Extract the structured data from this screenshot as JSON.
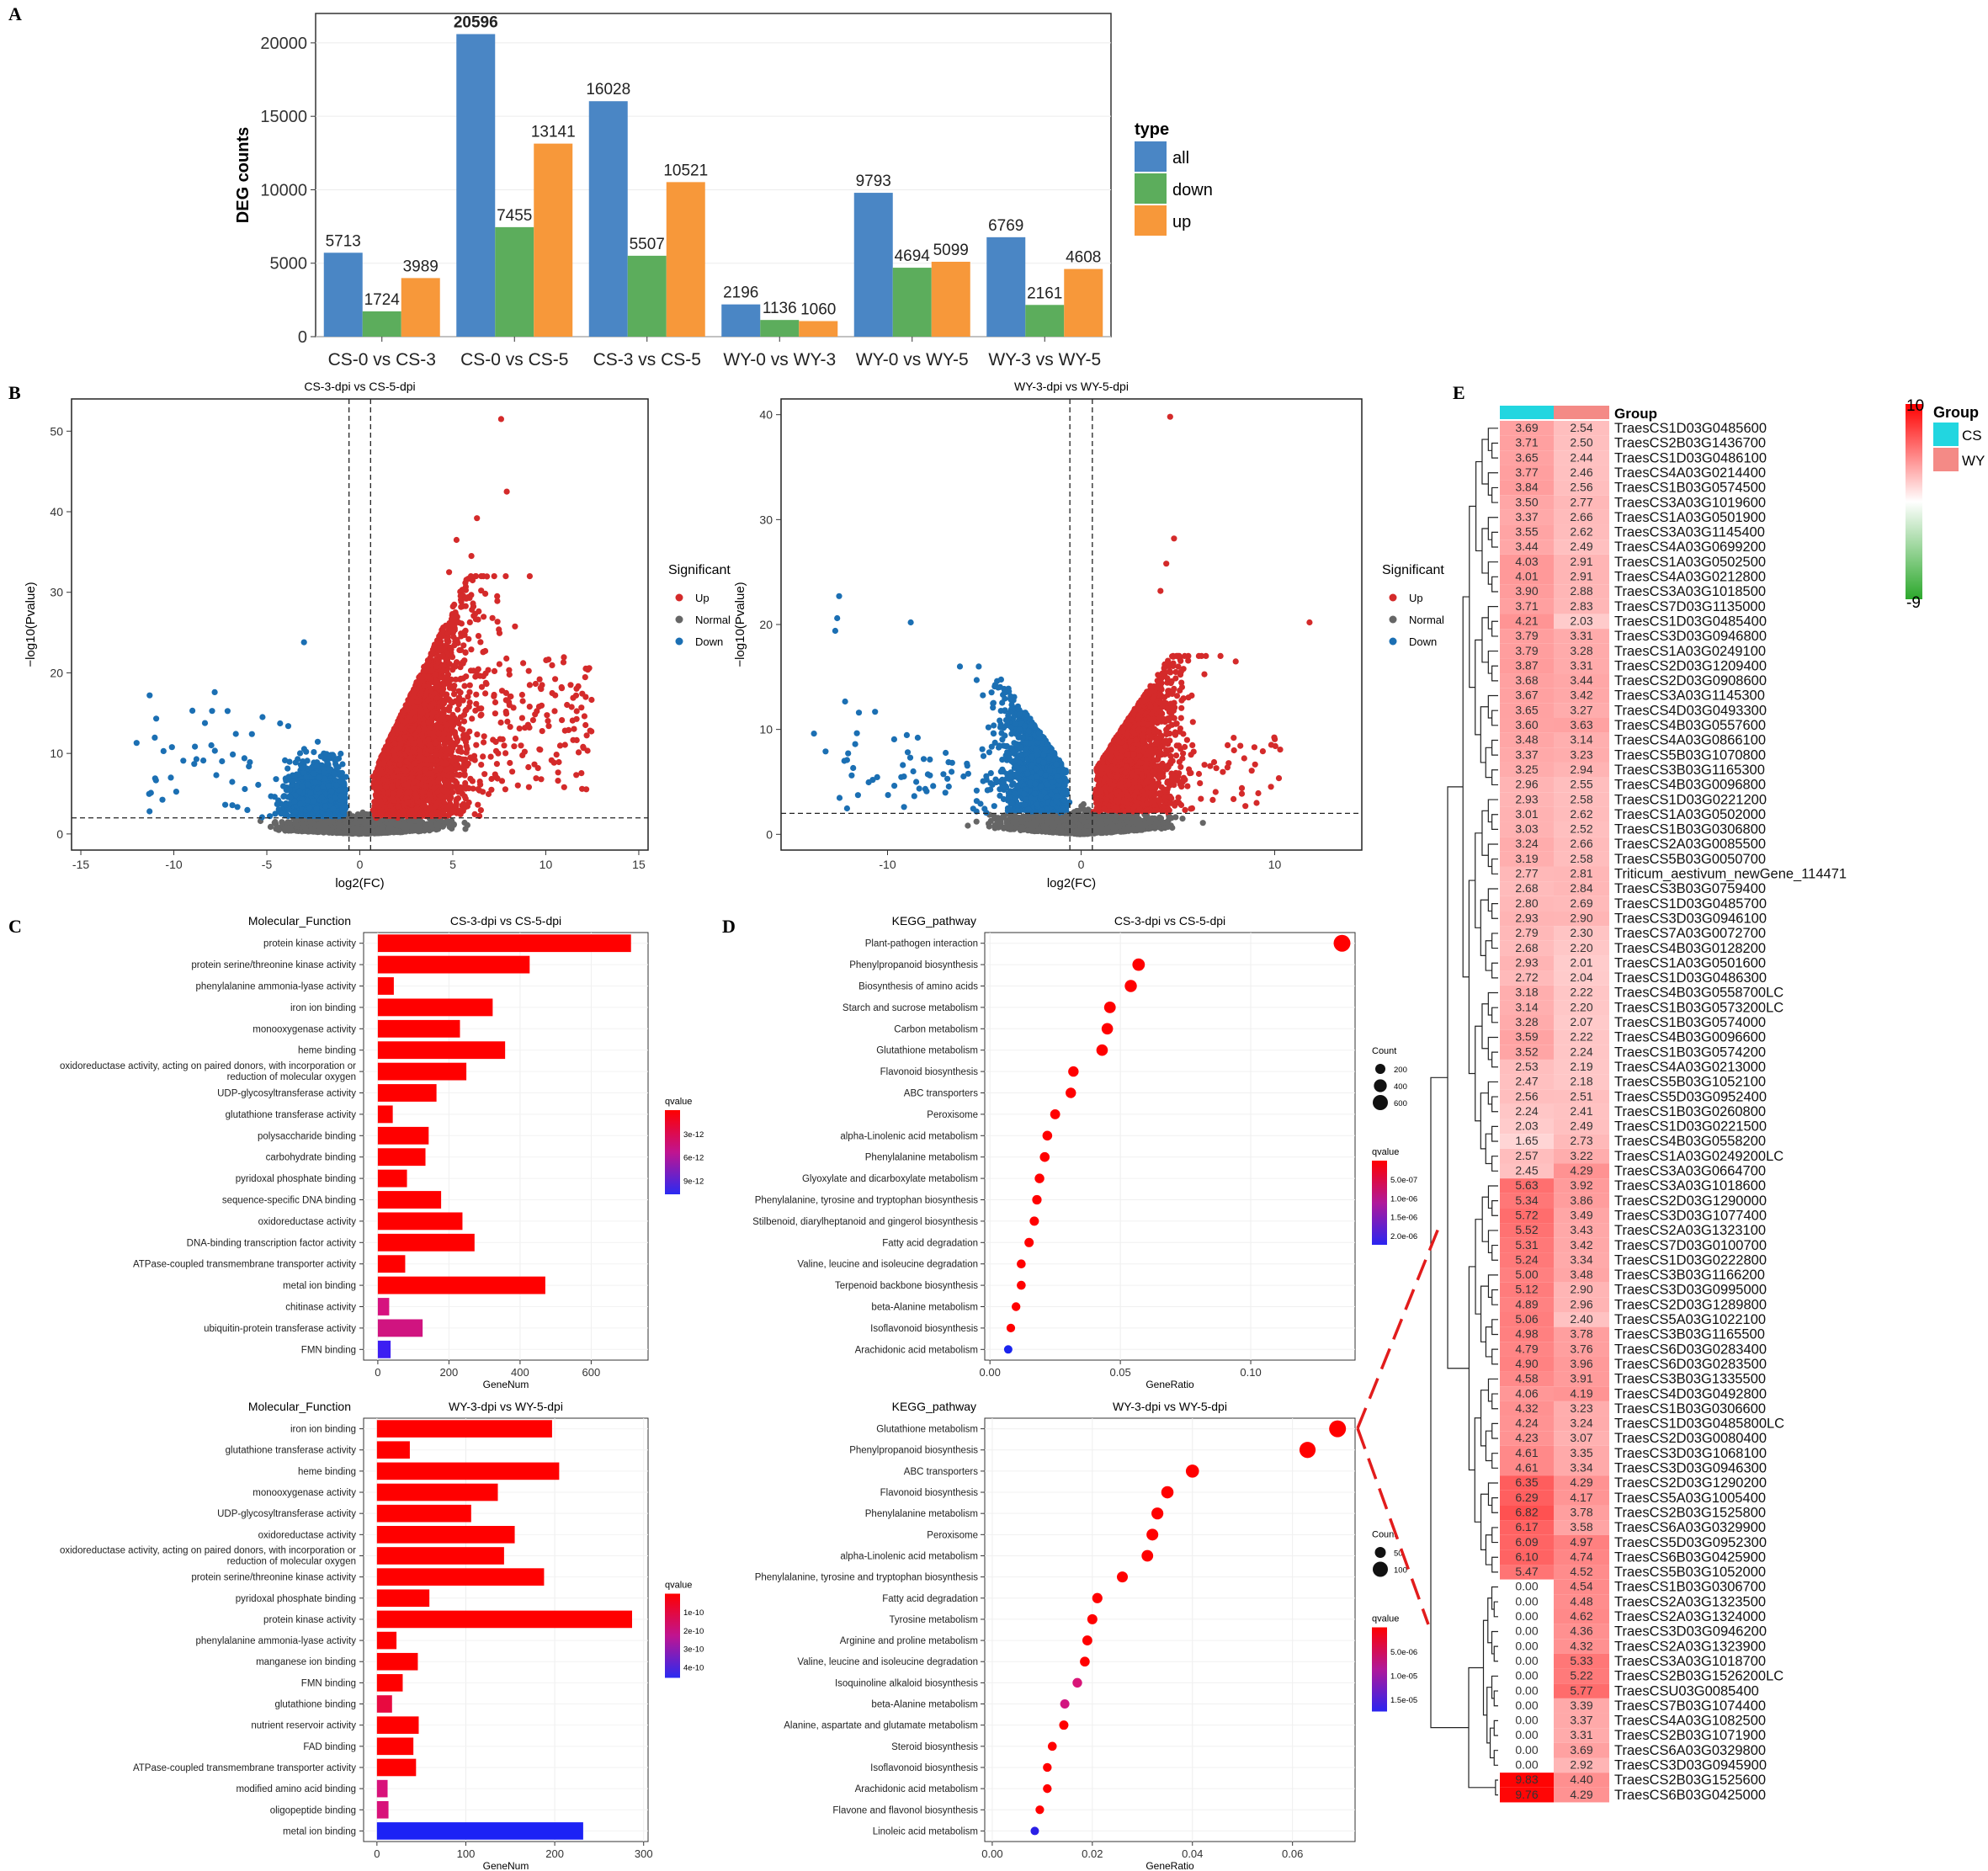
{
  "panel_labels": {
    "A": "A",
    "B": "B",
    "C": "C",
    "D": "D",
    "E": "E"
  },
  "chart_data": [
    {
      "id": "A",
      "type": "bar",
      "ylabel": "DEG counts",
      "ylim": [
        0,
        22000
      ],
      "yticks": [
        0,
        5000,
        10000,
        15000,
        20000
      ],
      "legend_title": "type",
      "legend_position": "right",
      "categories": [
        "CS-0 vs CS-3",
        "CS-0 vs CS-5",
        "CS-3 vs CS-5",
        "WY-0 vs WY-3",
        "WY-0 vs WY-5",
        "WY-3 vs WY-5"
      ],
      "series": [
        {
          "name": "all",
          "color": "#4a86c5",
          "values": [
            5713,
            20596,
            16028,
            2196,
            9793,
            6769
          ]
        },
        {
          "name": "down",
          "color": "#5cad5c",
          "values": [
            1724,
            7455,
            5507,
            1136,
            4694,
            2161
          ]
        },
        {
          "name": "up",
          "color": "#f7983a",
          "values": [
            3989,
            13141,
            10521,
            1060,
            5099,
            4608
          ]
        }
      ]
    },
    {
      "id": "B1",
      "type": "scatter",
      "title": "CS-3-dpi  vs  CS-5-dpi",
      "xlabel": "log2(FC)",
      "ylabel": "−log10(Pvalue)",
      "xlim": [
        -15.5,
        15.5
      ],
      "ylim": [
        -2,
        54
      ],
      "xticks": [
        -15,
        -10,
        -5,
        0,
        5,
        10,
        15
      ],
      "yticks": [
        0,
        10,
        20,
        30,
        40,
        50
      ],
      "legend_title": "Significant",
      "legend": [
        {
          "name": "Up",
          "color": "#d42a2a"
        },
        {
          "name": "Normal",
          "color": "#666666"
        },
        {
          "name": "Down",
          "color": "#1b6fb3"
        }
      ],
      "thresholds": {
        "fc": 0.58,
        "p": 2
      }
    },
    {
      "id": "B2",
      "type": "scatter",
      "title": "WY-3-dpi  vs  WY-5-dpi",
      "xlabel": "log2(FC)",
      "ylabel": "−log10(Pvalue)",
      "xlim": [
        -15.5,
        14.5
      ],
      "ylim": [
        -1.5,
        41.5
      ],
      "xticks": [
        -10,
        0,
        10
      ],
      "yticks": [
        0,
        10,
        20,
        30,
        40
      ],
      "legend_title": "Significant",
      "legend": [
        {
          "name": "Up",
          "color": "#d42a2a"
        },
        {
          "name": "Normal",
          "color": "#666666"
        },
        {
          "name": "Down",
          "color": "#1b6fb3"
        }
      ],
      "thresholds": {
        "fc": 0.58,
        "p": 2
      }
    },
    {
      "id": "C1",
      "type": "bar",
      "orientation": "horizontal",
      "category_title": "Molecular_Function",
      "title": "CS-3-dpi  vs  CS-5-dpi",
      "xlabel": "GeneNum",
      "xlim": [
        -40,
        760
      ],
      "xticks": [
        0,
        200,
        400,
        600
      ],
      "legend_title": "qvalue",
      "legend_labels": [
        "3e-12",
        "6e-12",
        "9e-12"
      ],
      "categories": [
        "protein kinase activity",
        "protein serine/threonine kinase activity",
        "phenylalanine ammonia-lyase activity",
        "iron ion binding",
        "monooxygenase activity",
        "heme binding",
        "oxidoreductase activity, acting on paired donors, with incorporation or\nreduction of molecular oxygen",
        "UDP-glycosyltransferase activity",
        "glutathione transferase activity",
        "polysaccharide binding",
        "carbohydrate binding",
        "pyridoxal phosphate binding",
        "sequence-specific DNA binding",
        "oxidoreductase activity",
        "DNA-binding transcription factor activity",
        "ATPase-coupled transmembrane transporter activity",
        "metal ion binding",
        "chitinase activity",
        "ubiquitin-protein transferase activity",
        "FMN binding"
      ],
      "values": [
        712,
        427,
        45,
        323,
        231,
        358,
        249,
        165,
        42,
        143,
        134,
        82,
        178,
        238,
        272,
        77,
        471,
        32,
        126,
        36
      ],
      "colors": [
        "#ff0000",
        "#ff0000",
        "#ff0000",
        "#ff0000",
        "#ff0000",
        "#ff0000",
        "#ff0000",
        "#ff0000",
        "#ff0000",
        "#ff0000",
        "#ff0000",
        "#ff0000",
        "#ff0000",
        "#ff0000",
        "#ff0000",
        "#ff0000",
        "#ff0000",
        "#d6127f",
        "#d01480",
        "#3c1ef2"
      ]
    },
    {
      "id": "C2",
      "type": "bar",
      "orientation": "horizontal",
      "category_title": "Molecular_Function",
      "title": "WY-3-dpi  vs  WY-5-dpi",
      "xlabel": "GeneNum",
      "xlim": [
        -15,
        305
      ],
      "xticks": [
        0,
        100,
        200,
        300
      ],
      "legend_title": "qvalue",
      "legend_labels": [
        "1e-10",
        "2e-10",
        "3e-10",
        "4e-10"
      ],
      "categories": [
        "iron ion binding",
        "glutathione transferase activity",
        "heme binding",
        "monooxygenase activity",
        "UDP-glycosyltransferase activity",
        "oxidoreductase activity",
        "oxidoreductase activity, acting on paired donors, with incorporation or\nreduction of molecular oxygen",
        "protein serine/threonine kinase activity",
        "pyridoxal phosphate binding",
        "protein kinase activity",
        "phenylalanine ammonia-lyase activity",
        "manganese ion binding",
        "FMN binding",
        "glutathione binding",
        "nutrient reservoir activity",
        "FAD binding",
        "ATPase-coupled transmembrane transporter activity",
        "modified amino acid binding",
        "oligopeptide binding",
        "metal ion binding"
      ],
      "values": [
        197,
        37,
        205,
        136,
        106,
        155,
        143,
        188,
        59,
        287,
        22,
        46,
        29,
        17,
        47,
        41,
        44,
        12,
        13,
        232
      ],
      "colors": [
        "#ff0000",
        "#ff0000",
        "#ff0000",
        "#ff0000",
        "#ff0000",
        "#ff0000",
        "#ff0000",
        "#ff0000",
        "#ff0000",
        "#ff0000",
        "#ff0000",
        "#ff0000",
        "#ff0000",
        "#e80a40",
        "#ff0000",
        "#ff0000",
        "#ff0000",
        "#d8127a",
        "#d8127a",
        "#1c22f5"
      ]
    },
    {
      "id": "D1",
      "type": "scatter",
      "category_title": "KEGG_pathway",
      "title": "CS-3-dpi  vs  CS-5-dpi",
      "xlabel": "GeneRatio",
      "xlim": [
        -0.002,
        0.14
      ],
      "xticks": [
        0.0,
        0.05,
        0.1
      ],
      "xtick_labels": [
        "0.00",
        "0.05",
        "0.10"
      ],
      "size_legend_title": "Count",
      "size_legend_labels": [
        "200",
        "400",
        "600"
      ],
      "legend_title": "qvalue",
      "legend_labels": [
        "5.0e-07",
        "1.0e-06",
        "1.5e-06",
        "2.0e-06"
      ],
      "categories": [
        "Plant-pathogen interaction",
        "Phenylpropanoid biosynthesis",
        "Biosynthesis of amino acids",
        "Starch and sucrose metabolism",
        "Carbon metabolism",
        "Glutathione metabolism",
        "Flavonoid biosynthesis",
        "ABC transporters",
        "Peroxisome",
        "alpha-Linolenic acid metabolism",
        "Phenylalanine metabolism",
        "Glyoxylate and dicarboxylate metabolism",
        "Phenylalanine, tyrosine and tryptophan biosynthesis",
        "Stilbenoid, diarylheptanoid and gingerol biosynthesis",
        "Fatty acid degradation",
        "Valine, leucine and isoleucine degradation",
        "Terpenoid backbone biosynthesis",
        "beta-Alanine metabolism",
        "Isoflavonoid biosynthesis",
        "Arachidonic acid metabolism"
      ],
      "values": [
        0.135,
        0.057,
        0.054,
        0.046,
        0.045,
        0.043,
        0.032,
        0.031,
        0.025,
        0.022,
        0.021,
        0.019,
        0.018,
        0.017,
        0.015,
        0.012,
        0.012,
        0.01,
        0.008,
        0.007
      ],
      "sizes": [
        640,
        330,
        300,
        270,
        260,
        250,
        185,
        180,
        150,
        135,
        130,
        120,
        110,
        105,
        95,
        80,
        75,
        60,
        50,
        40
      ],
      "colors": [
        "#ff0000",
        "#ff0000",
        "#ff0000",
        "#ff0000",
        "#ff0000",
        "#ff0000",
        "#ff0000",
        "#ff0000",
        "#ff0000",
        "#ff0000",
        "#ff0000",
        "#ff0000",
        "#ff0000",
        "#ff0000",
        "#ff0000",
        "#ff0000",
        "#ff0000",
        "#ff0000",
        "#ff0000",
        "#1a24ee"
      ]
    },
    {
      "id": "D2",
      "type": "scatter",
      "category_title": "KEGG_pathway",
      "title": "WY-3-dpi  vs  WY-5-dpi",
      "xlabel": "GeneRatio",
      "xlim": [
        -0.0015,
        0.0725
      ],
      "xticks": [
        0.0,
        0.02,
        0.04,
        0.06
      ],
      "xtick_labels": [
        "0.00",
        "0.02",
        "0.04",
        "0.06"
      ],
      "size_legend_title": "Count",
      "size_legend_labels": [
        "50",
        "100"
      ],
      "legend_title": "qvalue",
      "legend_labels": [
        "5.0e-06",
        "1.0e-05",
        "1.5e-05"
      ],
      "categories": [
        "Glutathione metabolism",
        "Phenylpropanoid biosynthesis",
        "ABC transporters",
        "Flavonoid biosynthesis",
        "Phenylalanine metabolism",
        "Peroxisome",
        "alpha-Linolenic acid metabolism",
        "Phenylalanine, tyrosine and tryptophan biosynthesis",
        "Fatty acid degradation",
        "Tyrosine metabolism",
        "Arginine and proline metabolism",
        "Valine, leucine and isoleucine degradation",
        "Isoquinoline alkaloid biosynthesis",
        "beta-Alanine metabolism",
        "Alanine, aspartate and glutamate metabolism",
        "Steroid biosynthesis",
        "Isoflavonoid biosynthesis",
        "Arachidonic acid metabolism",
        "Flavone and flavonol biosynthesis",
        "Linoleic acid metabolism"
      ],
      "values": [
        0.069,
        0.063,
        0.04,
        0.035,
        0.033,
        0.032,
        0.031,
        0.026,
        0.021,
        0.02,
        0.019,
        0.0185,
        0.017,
        0.0145,
        0.0143,
        0.012,
        0.011,
        0.011,
        0.0095,
        0.0085
      ],
      "sizes": [
        130,
        120,
        80,
        70,
        65,
        63,
        60,
        50,
        42,
        40,
        37,
        36,
        32,
        28,
        28,
        24,
        22,
        22,
        19,
        17
      ],
      "colors": [
        "#ff0000",
        "#ff0000",
        "#ff0000",
        "#ff0000",
        "#ff0000",
        "#ff0000",
        "#ff0000",
        "#ff0000",
        "#ff0000",
        "#ff0000",
        "#ff0000",
        "#ff0000",
        "#d81578",
        "#d21680",
        "#ff0000",
        "#ff0000",
        "#ff0000",
        "#ff0000",
        "#ff0000",
        "#2a1fe6"
      ]
    },
    {
      "id": "E",
      "type": "heatmap",
      "legend_title": "Group",
      "groups": [
        {
          "name": "CS",
          "color": "#22d6e0"
        },
        {
          "name": "WY",
          "color": "#f48a86"
        }
      ],
      "scale_labels": [
        "10",
        "-9"
      ],
      "genes": [
        "TraesCS1D03G0485600",
        "TraesCS2B03G1436700",
        "TraesCS1D03G0486100",
        "TraesCS4A03G0214400",
        "TraesCS1B03G0574500",
        "TraesCS3A03G1019600",
        "TraesCS1A03G0501900",
        "TraesCS3A03G1145400",
        "TraesCS4A03G0699200",
        "TraesCS1A03G0502500",
        "TraesCS4A03G0212800",
        "TraesCS3A03G1018500",
        "TraesCS7D03G1135000",
        "TraesCS1D03G0485400",
        "TraesCS3D03G0946800",
        "TraesCS1A03G0249100",
        "TraesCS2D03G1209400",
        "TraesCS2D03G0908600",
        "TraesCS3A03G1145300",
        "TraesCS4D03G0493300",
        "TraesCS4B03G0557600",
        "TraesCS4A03G0866100",
        "TraesCS5B03G1070800",
        "TraesCS3B03G1165300",
        "TraesCS4B03G0096800",
        "TraesCS1D03G0221200",
        "TraesCS1A03G0502000",
        "TraesCS1B03G0306800",
        "TraesCS2A03G0085500",
        "TraesCS5B03G0050700",
        "Triticum_aestivum_newGene_114471",
        "TraesCS3B03G0759400",
        "TraesCS1D03G0485700",
        "TraesCS3D03G0946100",
        "TraesCS7A03G0072700",
        "TraesCS4B03G0128200",
        "TraesCS1A03G0501600",
        "TraesCS1D03G0486300",
        "TraesCS4B03G0558700LC",
        "TraesCS1B03G0573200LC",
        "TraesCS1B03G0574000",
        "TraesCS4B03G0096600",
        "TraesCS1B03G0574200",
        "TraesCS4A03G0213000",
        "TraesCS5B03G1052100",
        "TraesCS5D03G0952400",
        "TraesCS1B03G0260800",
        "TraesCS1D03G0221500",
        "TraesCS4B03G0558200",
        "TraesCS1A03G0249200LC",
        "TraesCS3A03G0664700",
        "TraesCS3A03G1018600",
        "TraesCS2D03G1290000",
        "TraesCS3D03G1077400",
        "TraesCS2A03G1323100",
        "TraesCS7D03G0100700",
        "TraesCS1D03G0222800",
        "TraesCS3B03G1166200",
        "TraesCS3D03G0995000",
        "TraesCS2D03G1289800",
        "TraesCS5A03G1022100",
        "TraesCS3B03G1165500",
        "TraesCS6D03G0283400",
        "TraesCS6D03G0283500",
        "TraesCS3B03G1335500",
        "TraesCS4D03G0492800",
        "TraesCS1B03G0306600",
        "TraesCS1D03G0485800LC",
        "TraesCS2D03G0080400",
        "TraesCS3D03G1068100",
        "TraesCS3D03G0946300",
        "TraesCS2D03G1290200",
        "TraesCS5A03G1005400",
        "TraesCS2B03G1525800",
        "TraesCS6A03G0329900",
        "TraesCS5D03G0952300",
        "TraesCS6B03G0425900",
        "TraesCS5B03G1052000",
        "TraesCS1B03G0306700",
        "TraesCS2A03G1323500",
        "TraesCS2A03G1324000",
        "TraesCS3D03G0946200",
        "TraesCS2A03G1323900",
        "TraesCS3A03G1018700",
        "TraesCS2B03G1526200LC",
        "TraesCSU03G0085400",
        "TraesCS7B03G1074400",
        "TraesCS4A03G1082500",
        "TraesCS2B03G1071900",
        "TraesCS6A03G0329800",
        "TraesCS3D03G0945900",
        "TraesCS2B03G1525600",
        "TraesCS6B03G0425000"
      ],
      "cs": [
        "3.69",
        "3.71",
        "3.65",
        "3.77",
        "3.84",
        "3.50",
        "3.37",
        "3.55",
        "3.44",
        "4.03",
        "4.01",
        "3.90",
        "3.71",
        "4.21",
        "3.79",
        "3.79",
        "3.87",
        "3.68",
        "3.67",
        "3.65",
        "3.60",
        "3.48",
        "3.37",
        "3.25",
        "2.96",
        "2.93",
        "3.01",
        "3.03",
        "3.24",
        "3.19",
        "2.77",
        "2.68",
        "2.80",
        "2.93",
        "2.79",
        "2.68",
        "2.93",
        "2.72",
        "3.18",
        "3.14",
        "3.28",
        "3.59",
        "3.52",
        "2.53",
        "2.47",
        "2.56",
        "2.24",
        "2.03",
        "1.65",
        "2.57",
        "2.45",
        "5.63",
        "5.34",
        "5.72",
        "5.52",
        "5.31",
        "5.24",
        "5.00",
        "5.12",
        "4.89",
        "5.06",
        "4.98",
        "4.79",
        "4.90",
        "4.58",
        "4.06",
        "4.32",
        "4.24",
        "4.23",
        "4.61",
        "4.61",
        "6.35",
        "6.29",
        "6.82",
        "6.17",
        "6.09",
        "6.10",
        "5.47",
        "0.00",
        "0.00",
        "0.00",
        "0.00",
        "0.00",
        "0.00",
        "0.00",
        "0.00",
        "0.00",
        "0.00",
        "0.00",
        "0.00",
        "0.00",
        "9.83",
        "9.76"
      ],
      "wy": [
        "2.54",
        "2.50",
        "2.44",
        "2.46",
        "2.56",
        "2.77",
        "2.66",
        "2.62",
        "2.49",
        "2.91",
        "2.91",
        "2.88",
        "2.83",
        "2.03",
        "3.31",
        "3.28",
        "3.31",
        "3.44",
        "3.42",
        "3.27",
        "3.63",
        "3.14",
        "3.23",
        "2.94",
        "2.55",
        "2.58",
        "2.62",
        "2.52",
        "2.66",
        "2.58",
        "2.81",
        "2.84",
        "2.69",
        "2.90",
        "2.30",
        "2.20",
        "2.01",
        "2.04",
        "2.22",
        "2.20",
        "2.07",
        "2.22",
        "2.24",
        "2.19",
        "2.18",
        "2.51",
        "2.41",
        "2.49",
        "2.73",
        "3.22",
        "4.29",
        "3.92",
        "3.86",
        "3.49",
        "3.43",
        "3.42",
        "3.34",
        "3.48",
        "2.90",
        "2.96",
        "2.40",
        "3.78",
        "3.76",
        "3.96",
        "3.91",
        "4.19",
        "3.23",
        "3.24",
        "3.07",
        "3.35",
        "3.34",
        "4.29",
        "4.17",
        "3.78",
        "3.58",
        "4.97",
        "4.74",
        "4.52",
        "4.54",
        "4.48",
        "4.62",
        "4.36",
        "4.32",
        "5.33",
        "5.22",
        "5.77",
        "3.39",
        "3.37",
        "3.31",
        "3.69",
        "2.92",
        "4.40",
        "4.29"
      ]
    }
  ]
}
